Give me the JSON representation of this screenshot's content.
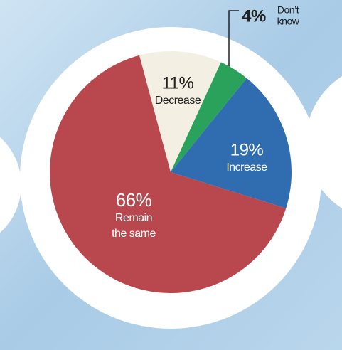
{
  "chart_data": {
    "type": "pie",
    "categories": [
      [
        "Decrease"
      ],
      [
        "Don’t",
        "know"
      ],
      [
        "Increase"
      ],
      [
        "Remain",
        "the same"
      ]
    ],
    "values": [
      11,
      4,
      19,
      66
    ],
    "value_labels": [
      "11%",
      "4%",
      "19%",
      "66%"
    ],
    "colors": [
      "#f4efe3",
      "#2ba25b",
      "#2f6cb0",
      "#b9484e"
    ]
  }
}
